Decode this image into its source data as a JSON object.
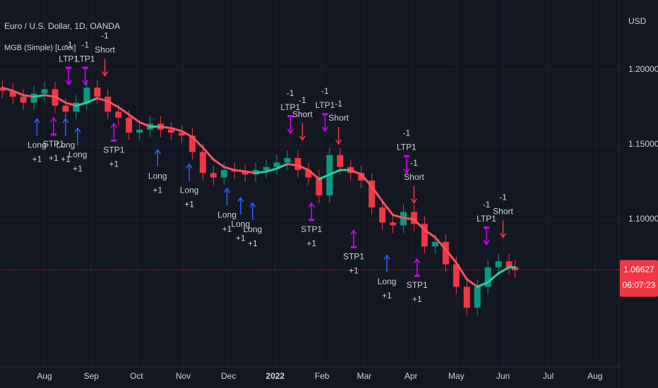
{
  "chart_data": {
    "type": "candlestick",
    "title": "Euro / U.S. Dollar, 1D, OANDA",
    "indicator": "MGB (Simple) [Loxx]",
    "currency": "USD",
    "countdown": "06:07:23",
    "last": 1.06627,
    "up_color": "#089981",
    "down_color": "#f23645",
    "xlim": [
      1.5,
      412
    ],
    "ylim": [
      1.0015,
      1.2466
    ],
    "yticks": [
      {
        "value": 1.2,
        "label": "1.20000"
      },
      {
        "value": 1.15,
        "label": "1.15000"
      },
      {
        "value": 1.1,
        "label": "1.10000"
      }
    ],
    "xticks": [
      {
        "value": 31,
        "label": "Aug"
      },
      {
        "value": 62,
        "label": "Sep"
      },
      {
        "value": 92,
        "label": "Oct"
      },
      {
        "value": 123,
        "label": "Nov"
      },
      {
        "value": 153,
        "label": "Dec"
      },
      {
        "value": 184,
        "label": "2022"
      },
      {
        "value": 215,
        "label": "Feb"
      },
      {
        "value": 243,
        "label": "Mar"
      },
      {
        "value": 274,
        "label": "Apr"
      },
      {
        "value": 304,
        "label": "May"
      },
      {
        "value": 335,
        "label": "Jun"
      },
      {
        "value": 365,
        "label": "Jul"
      },
      {
        "value": 396,
        "label": "Aug"
      }
    ],
    "x": [
      3,
      10,
      17,
      24,
      31,
      38,
      45,
      52,
      59,
      66,
      73,
      80,
      87,
      94,
      101,
      108,
      115,
      122,
      129,
      136,
      143,
      150,
      157,
      164,
      171,
      178,
      185,
      192,
      199,
      206,
      213,
      220,
      227,
      234,
      241,
      248,
      255,
      262,
      269,
      276,
      283,
      290,
      297,
      304,
      311,
      318,
      325,
      332,
      339,
      343
    ],
    "open": [
      1.188,
      1.186,
      1.182,
      1.178,
      1.184,
      1.187,
      1.176,
      1.172,
      1.178,
      1.188,
      1.182,
      1.172,
      1.168,
      1.158,
      1.16,
      1.164,
      1.16,
      1.158,
      1.156,
      1.145,
      1.131,
      1.128,
      1.133,
      1.132,
      1.13,
      1.133,
      1.135,
      1.138,
      1.141,
      1.133,
      1.128,
      1.116,
      1.143,
      1.135,
      1.131,
      1.126,
      1.108,
      1.098,
      1.096,
      1.105,
      1.097,
      1.082,
      1.085,
      1.07,
      1.055,
      1.041,
      1.055,
      1.068,
      1.072,
      1.068
    ],
    "high": [
      1.193,
      1.191,
      1.187,
      1.189,
      1.192,
      1.192,
      1.181,
      1.183,
      1.193,
      1.193,
      1.187,
      1.177,
      1.173,
      1.165,
      1.169,
      1.169,
      1.165,
      1.163,
      1.161,
      1.15,
      1.136,
      1.138,
      1.138,
      1.137,
      1.138,
      1.14,
      1.143,
      1.146,
      1.146,
      1.138,
      1.133,
      1.148,
      1.148,
      1.14,
      1.136,
      1.131,
      1.113,
      1.103,
      1.11,
      1.11,
      1.102,
      1.09,
      1.09,
      1.075,
      1.06,
      1.06,
      1.073,
      1.077,
      1.077,
      1.073
    ],
    "low": [
      1.181,
      1.177,
      1.173,
      1.173,
      1.179,
      1.171,
      1.167,
      1.167,
      1.173,
      1.177,
      1.167,
      1.163,
      1.153,
      1.153,
      1.155,
      1.155,
      1.153,
      1.151,
      1.14,
      1.126,
      1.123,
      1.123,
      1.127,
      1.125,
      1.125,
      1.128,
      1.13,
      1.133,
      1.128,
      1.123,
      1.111,
      1.111,
      1.13,
      1.126,
      1.121,
      1.103,
      1.093,
      1.091,
      1.091,
      1.092,
      1.077,
      1.077,
      1.065,
      1.05,
      1.036,
      1.036,
      1.05,
      1.063,
      1.063,
      1.061
    ],
    "close": [
      1.186,
      1.182,
      1.178,
      1.184,
      1.187,
      1.176,
      1.172,
      1.178,
      1.188,
      1.182,
      1.172,
      1.168,
      1.158,
      1.16,
      1.164,
      1.16,
      1.158,
      1.156,
      1.145,
      1.131,
      1.128,
      1.133,
      1.132,
      1.13,
      1.133,
      1.135,
      1.138,
      1.141,
      1.133,
      1.128,
      1.116,
      1.143,
      1.135,
      1.131,
      1.126,
      1.108,
      1.098,
      1.096,
      1.105,
      1.097,
      1.082,
      1.085,
      1.07,
      1.055,
      1.041,
      1.055,
      1.068,
      1.072,
      1.068,
      1.066
    ],
    "ma": {
      "rise_color": "#22d49a",
      "fall_color": "#f7525f",
      "values": [
        1.188,
        1.186,
        1.183,
        1.182,
        1.183,
        1.182,
        1.178,
        1.176,
        1.178,
        1.181,
        1.179,
        1.175,
        1.17,
        1.165,
        1.162,
        1.162,
        1.161,
        1.159,
        1.155,
        1.148,
        1.14,
        1.135,
        1.133,
        1.132,
        1.131,
        1.132,
        1.134,
        1.137,
        1.136,
        1.133,
        1.127,
        1.13,
        1.133,
        1.133,
        1.13,
        1.122,
        1.112,
        1.103,
        1.101,
        1.1,
        1.093,
        1.088,
        1.08,
        1.071,
        1.06,
        1.055,
        1.058,
        1.064,
        1.068,
        1.068
      ]
    },
    "signals": [
      {
        "x": 71,
        "price": 1.196,
        "dir": "down",
        "color": "#f23645",
        "text": [
          "-1",
          "Short"
        ]
      },
      {
        "x": 47,
        "price": 1.19,
        "dir": "down",
        "color": "#d500f9",
        "text": [
          "-1",
          "LTP1"
        ]
      },
      {
        "x": 58,
        "price": 1.19,
        "dir": "down",
        "color": "#d500f9",
        "text": [
          "-1",
          "LTP1"
        ]
      },
      {
        "x": 26,
        "price": 1.1673,
        "dir": "up",
        "color": "#2962ff",
        "text": [
          "Long",
          "+1"
        ]
      },
      {
        "x": 37,
        "price": 1.168,
        "dir": "up",
        "color": "#d500f9",
        "text": [
          "STP1",
          "+1"
        ]
      },
      {
        "x": 45,
        "price": 1.1673,
        "dir": "up",
        "color": "#2962ff",
        "text": [
          "Long",
          "+1"
        ]
      },
      {
        "x": 53,
        "price": 1.161,
        "dir": "up",
        "color": "#2962ff",
        "text": [
          "Long",
          "+1"
        ]
      },
      {
        "x": 77,
        "price": 1.164,
        "dir": "up",
        "color": "#d500f9",
        "text": [
          "STP1",
          "+1"
        ]
      },
      {
        "x": 106,
        "price": 1.1466,
        "dir": "up",
        "color": "#2962ff",
        "text": [
          "Long",
          "+1"
        ]
      },
      {
        "x": 127,
        "price": 1.137,
        "dir": "up",
        "color": "#2962ff",
        "text": [
          "Long",
          "+1"
        ]
      },
      {
        "x": 152,
        "price": 1.1207,
        "dir": "up",
        "color": "#2962ff",
        "text": [
          "Long",
          "+1"
        ]
      },
      {
        "x": 161,
        "price": 1.1145,
        "dir": "up",
        "color": "#2962ff",
        "text": [
          "Long",
          "+1"
        ]
      },
      {
        "x": 169,
        "price": 1.111,
        "dir": "up",
        "color": "#2962ff",
        "text": [
          "Long",
          "+1"
        ]
      },
      {
        "x": 194,
        "price": 1.1577,
        "dir": "down",
        "color": "#d500f9",
        "text": [
          "-1",
          "LTP1"
        ]
      },
      {
        "x": 202,
        "price": 1.153,
        "dir": "down",
        "color": "#f23645",
        "text": [
          "-1",
          "Short"
        ]
      },
      {
        "x": 208,
        "price": 1.111,
        "dir": "up",
        "color": "#d500f9",
        "text": [
          "STP1",
          "+1"
        ]
      },
      {
        "x": 217,
        "price": 1.159,
        "dir": "down",
        "color": "#d500f9",
        "text": [
          "-1",
          "LTP1"
        ]
      },
      {
        "x": 226,
        "price": 1.1505,
        "dir": "down",
        "color": "#f23645",
        "text": [
          "-1",
          "Short"
        ]
      },
      {
        "x": 236,
        "price": 1.0928,
        "dir": "up",
        "color": "#d500f9",
        "text": [
          "STP1",
          "+1"
        ]
      },
      {
        "x": 258,
        "price": 1.076,
        "dir": "up",
        "color": "#2962ff",
        "text": [
          "Long",
          "+1"
        ]
      },
      {
        "x": 271,
        "price": 1.131,
        "dir": "down",
        "color": "#d500f9",
        "text": [
          "-1",
          "LTP1"
        ]
      },
      {
        "x": 276,
        "price": 1.111,
        "dir": "down",
        "color": "#f23645",
        "text": [
          "-1",
          "Short"
        ]
      },
      {
        "x": 278,
        "price": 1.0736,
        "dir": "up",
        "color": "#d500f9",
        "text": [
          "STP1",
          "+1"
        ]
      },
      {
        "x": 324,
        "price": 1.0832,
        "dir": "down",
        "color": "#d500f9",
        "text": [
          "-1",
          "LTP1"
        ]
      },
      {
        "x": 335,
        "price": 1.088,
        "dir": "down",
        "color": "#f23645",
        "text": [
          "-1",
          "Short"
        ]
      }
    ]
  }
}
